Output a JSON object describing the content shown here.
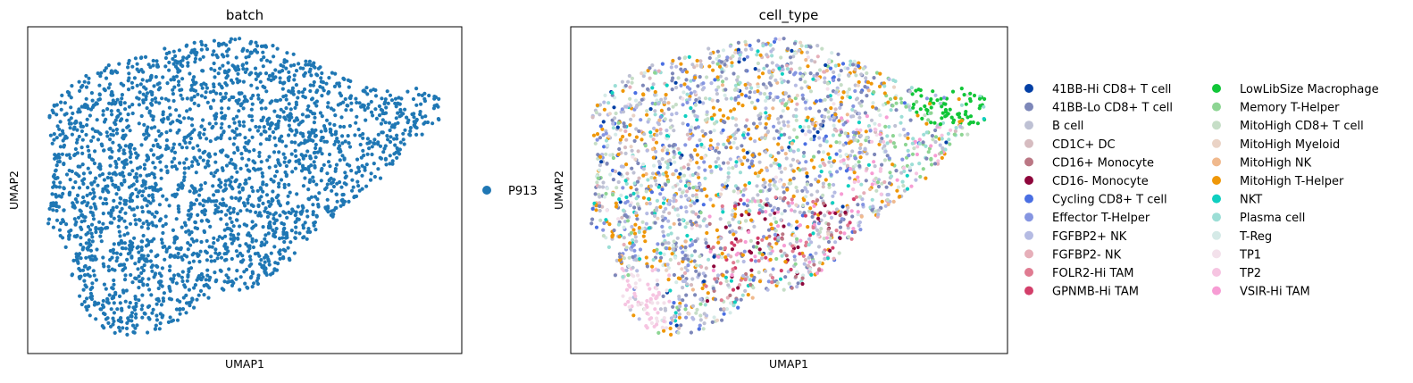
{
  "chart_data": [
    {
      "type": "scatter",
      "title": "batch",
      "xlabel": "UMAP1",
      "ylabel": "UMAP2",
      "legend_position": "right",
      "series": [
        {
          "name": "P913",
          "color": "#1f77b4"
        }
      ]
    },
    {
      "type": "scatter",
      "title": "cell_type",
      "xlabel": "UMAP1",
      "ylabel": "UMAP2",
      "legend_position": "right",
      "series": [
        {
          "name": "41BB-Hi CD8+ T cell",
          "color": "#023fa5"
        },
        {
          "name": "41BB-Lo CD8+ T cell",
          "color": "#7d87b9"
        },
        {
          "name": "B cell",
          "color": "#bec1d4"
        },
        {
          "name": "CD1C+ DC",
          "color": "#d6bcc0"
        },
        {
          "name": "CD16+ Monocyte",
          "color": "#bb7784"
        },
        {
          "name": "CD16- Monocyte",
          "color": "#8e063b"
        },
        {
          "name": "Cycling CD8+ T cell",
          "color": "#4a6fe3"
        },
        {
          "name": "Effector T-Helper",
          "color": "#8595e1"
        },
        {
          "name": "FGFBP2+ NK",
          "color": "#b5bbe3"
        },
        {
          "name": "FGFBP2- NK",
          "color": "#e6afb9"
        },
        {
          "name": "FOLR2-Hi TAM",
          "color": "#e07b91"
        },
        {
          "name": "GPNMB-Hi TAM",
          "color": "#d33f6a"
        },
        {
          "name": "LowLibSize Macrophage",
          "color": "#11c638"
        },
        {
          "name": "Memory T-Helper",
          "color": "#8dd593"
        },
        {
          "name": "MitoHigh CD8+ T cell",
          "color": "#c6dec7"
        },
        {
          "name": "MitoHigh Myeloid",
          "color": "#ead3c6"
        },
        {
          "name": "MitoHigh NK",
          "color": "#f0b98d"
        },
        {
          "name": "MitoHigh T-Helper",
          "color": "#ef9708"
        },
        {
          "name": "NKT",
          "color": "#0fcfc0"
        },
        {
          "name": "Plasma cell",
          "color": "#9cded6"
        },
        {
          "name": "T-Reg",
          "color": "#d5eae7"
        },
        {
          "name": "TP1",
          "color": "#f3e1eb"
        },
        {
          "name": "TP2",
          "color": "#f6c4e1"
        },
        {
          "name": "VSIR-Hi TAM",
          "color": "#f79cd4"
        }
      ]
    }
  ]
}
